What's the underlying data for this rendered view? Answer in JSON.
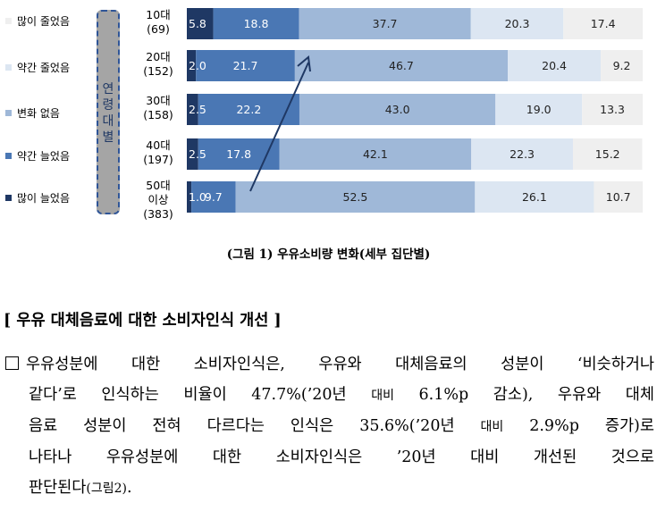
{
  "chart_data": {
    "type": "bar",
    "orientation": "horizontal",
    "stacked": true,
    "group_label": "연령대별",
    "categories": [
      {
        "label": "10대",
        "n": "(69)"
      },
      {
        "label": "20대",
        "n": "(152)"
      },
      {
        "label": "30대",
        "n": "(158)"
      },
      {
        "label": "40대",
        "n": "(197)"
      },
      {
        "label": "50대\n이상",
        "n": "(383)"
      }
    ],
    "series": [
      {
        "name": "많이 늘었음",
        "color": "#1f3864",
        "values": [
          5.8,
          2.0,
          2.5,
          2.5,
          1.0
        ]
      },
      {
        "name": "약간 늘었음",
        "color": "#4a77b4",
        "values": [
          18.8,
          21.7,
          22.2,
          17.8,
          9.7
        ]
      },
      {
        "name": "변화 없음",
        "color": "#9fb8d8",
        "values": [
          37.7,
          46.7,
          43.0,
          42.1,
          52.5
        ]
      },
      {
        "name": "약간 줄었음",
        "color": "#dce6f2",
        "values": [
          20.3,
          20.4,
          19.0,
          22.3,
          26.1
        ]
      },
      {
        "name": "많이 줄었음",
        "color": "#efefef",
        "values": [
          17.4,
          9.2,
          13.3,
          15.2,
          10.7
        ]
      }
    ],
    "legend_order": [
      "많이 줄었음",
      "약간 줄었음",
      "변화 없음",
      "약간 늘었음",
      "많이 늘었음"
    ],
    "legend_position": "left",
    "xlim": [
      0,
      100
    ],
    "annotation": "arrow"
  },
  "caption": "(그림 1) 우유소비량 변화(세부 집단별)",
  "section_title": "[ 우유 대체음료에 대한 소비자인식 개선 ]",
  "paragraph": {
    "line1": "우유성분에 대한 소비자인식은, 우유와 대체음료의 성분이 ‘비슷하거나",
    "line2a": "같다’로 인식하는 비율이 47.7%(’20년 ",
    "line2b": "대비",
    "line2c": " 6.1%p 감소), 우유와 대체",
    "line3a": "음료 성분이 전혀 다르다는 인식은 35.6%(’20년 ",
    "line3b": "대비",
    "line3c": " 2.9%p 증가)로",
    "line4": "나타나 우유성분에 대한 소비자인식은 ’20년 대비 개선된 것으로",
    "line5a": "판단된다",
    "line5b": "(그림2)",
    "line5c": "."
  }
}
